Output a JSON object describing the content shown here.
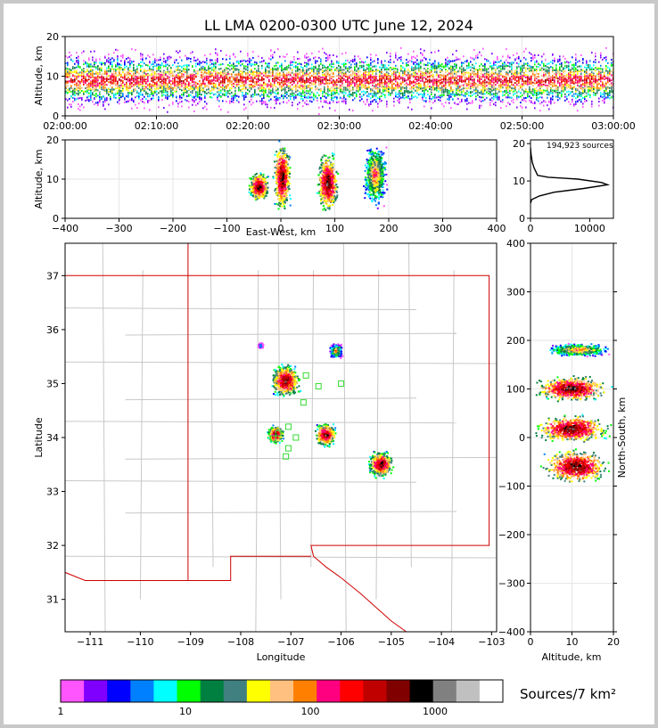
{
  "chart_data": [
    {
      "id": "time_alt",
      "type": "heatmap",
      "title": "LL LMA 0200-0300 UTC June 12, 2024",
      "xlabel": "",
      "ylabel": "Altitude, km",
      "x_ticks": [
        "02:00:00",
        "02:10:00",
        "02:20:00",
        "02:30:00",
        "02:40:00",
        "02:50:00",
        "03:00:00"
      ],
      "ylim": [
        0,
        20
      ],
      "y_ticks": [
        0,
        10,
        20
      ],
      "altitude_band_core_km": [
        7,
        11
      ]
    },
    {
      "id": "ew_alt",
      "type": "heatmap",
      "xlabel": "East-West, km",
      "ylabel": "Altitude, km",
      "xlim": [
        -400,
        400
      ],
      "x_ticks": [
        -400,
        -300,
        -200,
        -100,
        0,
        100,
        200,
        300,
        400
      ],
      "ylim": [
        0,
        20
      ],
      "y_ticks": [
        0,
        10,
        20
      ],
      "clusters": [
        {
          "x": [
            -60,
            -20
          ],
          "y": [
            4,
            12
          ],
          "peak": "high"
        },
        {
          "x": [
            -15,
            20
          ],
          "y": [
            1,
            20
          ],
          "peak": "high"
        },
        {
          "x": [
            65,
            110
          ],
          "y": [
            1,
            17
          ],
          "peak": "high"
        },
        {
          "x": [
            150,
            200
          ],
          "y": [
            2,
            20
          ],
          "peak": "medium"
        }
      ]
    },
    {
      "id": "alt_hist",
      "type": "line",
      "annotation": "194,923 sources",
      "xlim": [
        0,
        14000
      ],
      "x_ticks": [
        0,
        10000
      ],
      "ylim": [
        0,
        21
      ],
      "y_ticks": [
        0,
        10,
        20
      ],
      "x": [
        0,
        200,
        1500,
        4000,
        9000,
        13000,
        12000,
        8000,
        3000,
        1200,
        900,
        600,
        300,
        100,
        0
      ],
      "y": [
        4,
        5,
        6,
        7,
        8,
        9,
        9.6,
        10.5,
        11,
        11.5,
        12.5,
        13.5,
        15,
        17,
        19
      ]
    },
    {
      "id": "map",
      "type": "heatmap",
      "xlabel": "Longitude",
      "ylabel": "Latitude",
      "xlim": [
        -111.5,
        -102.9
      ],
      "x_ticks": [
        -111,
        -110,
        -109,
        -108,
        -107,
        -106,
        -105,
        -104,
        -103
      ],
      "ylim": [
        30.4,
        37.6
      ],
      "y_ticks": [
        31,
        32,
        33,
        34,
        35,
        36,
        37
      ],
      "clusters": [
        {
          "lon": -107.1,
          "lat": 35.05,
          "size": 0.55,
          "peak": "high"
        },
        {
          "lon": -106.1,
          "lat": 35.6,
          "size": 0.25,
          "peak": "medium"
        },
        {
          "lon": -107.3,
          "lat": 34.05,
          "size": 0.3,
          "peak": "high"
        },
        {
          "lon": -106.3,
          "lat": 34.05,
          "size": 0.4,
          "peak": "high"
        },
        {
          "lon": -105.2,
          "lat": 33.5,
          "size": 0.45,
          "peak": "high"
        },
        {
          "lon": -107.6,
          "lat": 35.7,
          "size": 0.1,
          "peak": "low"
        }
      ],
      "stations": [
        {
          "lon": -106.7,
          "lat": 35.15
        },
        {
          "lon": -106.45,
          "lat": 34.95
        },
        {
          "lon": -106.0,
          "lat": 35.0
        },
        {
          "lon": -106.75,
          "lat": 34.65
        },
        {
          "lon": -107.05,
          "lat": 34.2
        },
        {
          "lon": -107.35,
          "lat": 33.98
        },
        {
          "lon": -106.9,
          "lat": 34.0
        },
        {
          "lon": -107.05,
          "lat": 33.8
        },
        {
          "lon": -107.1,
          "lat": 33.65
        },
        {
          "lon": -107.25,
          "lat": 34.08
        }
      ]
    },
    {
      "id": "alt_ns",
      "type": "heatmap",
      "xlabel": "Altitude, km",
      "ylabel": "North-South, km",
      "xlim": [
        0,
        20
      ],
      "x_ticks": [
        0,
        10,
        20
      ],
      "ylim": [
        -400,
        400
      ],
      "y_ticks": [
        -400,
        -300,
        -200,
        -100,
        0,
        100,
        200,
        300,
        400
      ],
      "clusters": [
        {
          "alt": [
            3,
            20
          ],
          "ns": [
            165,
            195
          ],
          "peak": "medium"
        },
        {
          "alt": [
            0,
            20
          ],
          "ns": [
            70,
            130
          ],
          "peak": "high"
        },
        {
          "alt": [
            0,
            20
          ],
          "ns": [
            -15,
            50
          ],
          "peak": "high"
        },
        {
          "alt": [
            2,
            20
          ],
          "ns": [
            -100,
            -20
          ],
          "peak": "high"
        }
      ]
    }
  ],
  "colorbar": {
    "label": "Sources/7 km²",
    "tick_labels": [
      "1",
      "10",
      "100",
      "1000"
    ],
    "colors": [
      "#ff55ff",
      "#8000ff",
      "#0000ff",
      "#0080ff",
      "#00ffff",
      "#00ff00",
      "#008040",
      "#408080",
      "#ffff00",
      "#ffc080",
      "#ff8000",
      "#ff0080",
      "#ff0000",
      "#c00000",
      "#800000",
      "#000000",
      "#808080",
      "#c0c0c0",
      "#ffffff"
    ]
  }
}
